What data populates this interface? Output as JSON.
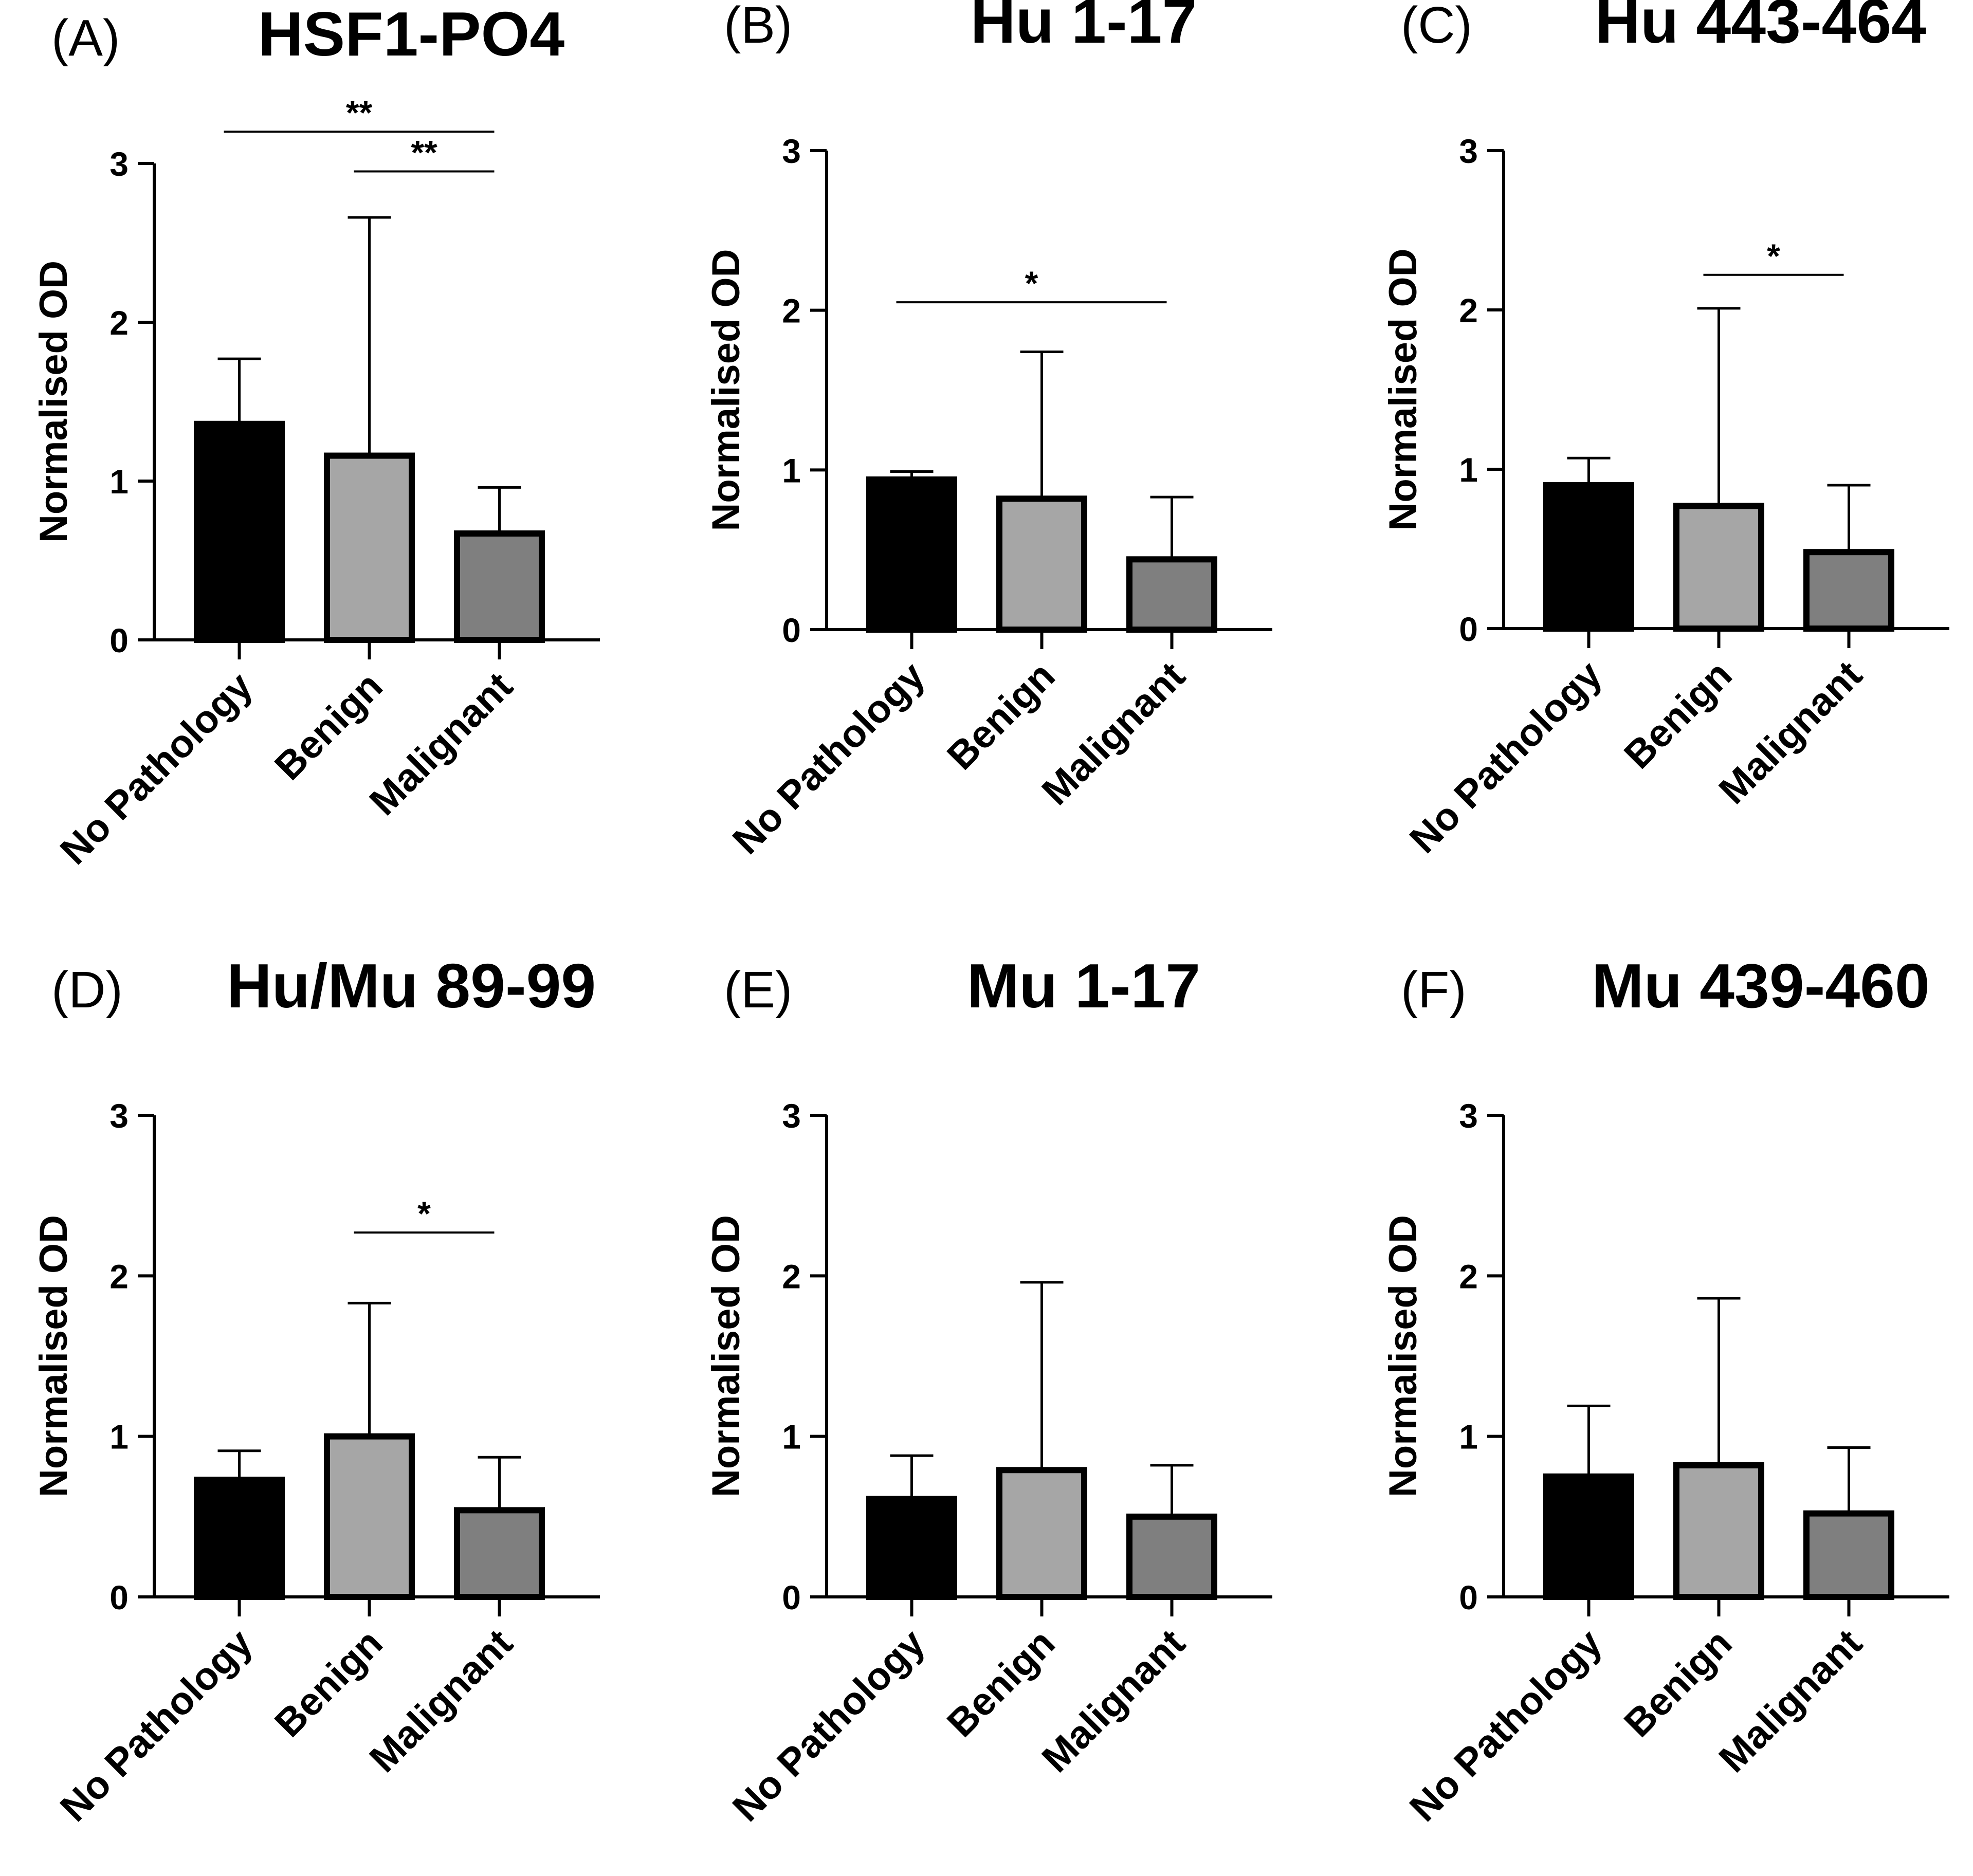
{
  "chart_data": [
    {
      "type": "bar",
      "panel": "(A)",
      "title": "HSF1-PO4",
      "ylabel": "Normalised  OD",
      "ylim": [
        0,
        3
      ],
      "yticks": [
        "0",
        "1",
        "2",
        "3"
      ],
      "categories": [
        "No Pathology",
        "Benign",
        "Malignant"
      ],
      "values": [
        1.36,
        1.16,
        0.67
      ],
      "error_upper": [
        1.77,
        2.66,
        0.96
      ],
      "colors": [
        "#000000",
        "#a6a6a6",
        "#7f7f7f"
      ],
      "significance": [
        {
          "from": 0,
          "to": 2,
          "y": 3.2,
          "label": "**"
        },
        {
          "from": 1,
          "to": 2,
          "y": 2.95,
          "label": "**"
        }
      ]
    },
    {
      "type": "bar",
      "panel": "(B)",
      "title": "Hu 1-17",
      "ylabel": "Normalised  OD",
      "ylim": [
        0,
        3
      ],
      "yticks": [
        "0",
        "1",
        "2",
        "3"
      ],
      "categories": [
        "No Pathology",
        "Benign",
        "Malignant"
      ],
      "values": [
        0.94,
        0.82,
        0.44
      ],
      "error_upper": [
        0.99,
        1.74,
        0.83
      ],
      "colors": [
        "#000000",
        "#a6a6a6",
        "#7f7f7f"
      ],
      "significance": [
        {
          "from": 0,
          "to": 2,
          "y": 2.05,
          "label": "*"
        }
      ]
    },
    {
      "type": "bar",
      "panel": "(C)",
      "title": "Hu 443-464",
      "ylabel": "Normalised  OD",
      "ylim": [
        0,
        3
      ],
      "yticks": [
        "0",
        "1",
        "2",
        "3"
      ],
      "categories": [
        "No Pathology",
        "Benign",
        "Malignant"
      ],
      "values": [
        0.9,
        0.77,
        0.48
      ],
      "error_upper": [
        1.07,
        2.01,
        0.9
      ],
      "colors": [
        "#000000",
        "#a6a6a6",
        "#7f7f7f"
      ],
      "significance": [
        {
          "from": 1,
          "to": 2,
          "y": 2.22,
          "label": "*"
        }
      ]
    },
    {
      "type": "bar",
      "panel": "(D)",
      "title": "Hu/Mu 89-99",
      "ylabel": "Normalised  OD",
      "ylim": [
        0,
        3
      ],
      "yticks": [
        "0",
        "1",
        "2",
        "3"
      ],
      "categories": [
        "No Pathology",
        "Benign",
        "Malignant"
      ],
      "values": [
        0.73,
        1.0,
        0.54
      ],
      "error_upper": [
        0.91,
        1.83,
        0.87
      ],
      "colors": [
        "#000000",
        "#a6a6a6",
        "#7f7f7f"
      ],
      "significance": [
        {
          "from": 1,
          "to": 2,
          "y": 2.27,
          "label": "*"
        }
      ]
    },
    {
      "type": "bar",
      "panel": "(E)",
      "title": "Mu 1-17",
      "ylabel": "Normalised  OD",
      "ylim": [
        0,
        3
      ],
      "yticks": [
        "0",
        "1",
        "2",
        "3"
      ],
      "categories": [
        "No Pathology",
        "Benign",
        "Malignant"
      ],
      "values": [
        0.61,
        0.79,
        0.5
      ],
      "error_upper": [
        0.88,
        1.96,
        0.82
      ],
      "colors": [
        "#000000",
        "#a6a6a6",
        "#7f7f7f"
      ],
      "significance": []
    },
    {
      "type": "bar",
      "panel": "(F)",
      "title": "Mu 439-460",
      "ylabel": "Normalised  OD",
      "ylim": [
        0,
        3
      ],
      "yticks": [
        "0",
        "1",
        "2",
        "3"
      ],
      "categories": [
        "No Pathology",
        "Benign",
        "Malignant"
      ],
      "values": [
        0.75,
        0.82,
        0.52
      ],
      "error_upper": [
        1.19,
        1.86,
        0.93
      ],
      "colors": [
        "#000000",
        "#a6a6a6",
        "#7f7f7f"
      ],
      "significance": []
    }
  ]
}
